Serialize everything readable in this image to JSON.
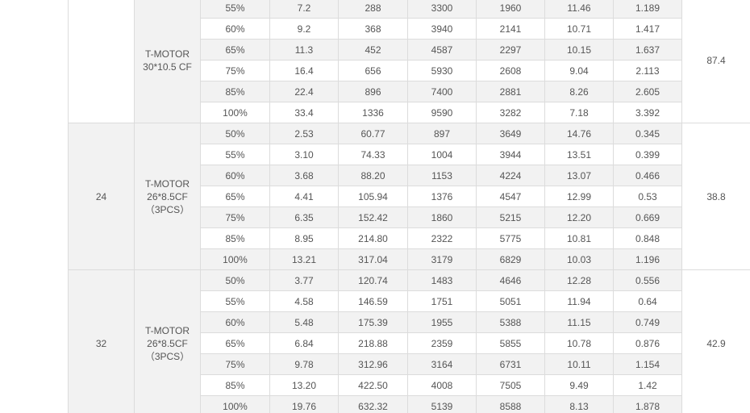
{
  "groups": [
    {
      "propeller": [
        "T-MOTOR",
        "30*10.5 CF"
      ],
      "efficiency": "87.4",
      "rows": [
        [
          "55%",
          "7.2",
          "288",
          "3300",
          "1960",
          "11.46",
          "1.189"
        ],
        [
          "60%",
          "9.2",
          "368",
          "3940",
          "2141",
          "10.71",
          "1.417"
        ],
        [
          "65%",
          "11.3",
          "452",
          "4587",
          "2297",
          "10.15",
          "1.637"
        ],
        [
          "75%",
          "16.4",
          "656",
          "5930",
          "2608",
          "9.04",
          "2.113"
        ],
        [
          "85%",
          "22.4",
          "896",
          "7400",
          "2881",
          "8.26",
          "2.605"
        ],
        [
          "100%",
          "33.4",
          "1336",
          "9590",
          "3282",
          "7.18",
          "3.392"
        ]
      ]
    },
    {
      "voltage": "24",
      "propeller": [
        "T-MOTOR",
        "26*8.5CF",
        "（3PCS）"
      ],
      "efficiency": "38.8",
      "rows": [
        [
          "50%",
          "2.53",
          "60.77",
          "897",
          "3649",
          "14.76",
          "0.345"
        ],
        [
          "55%",
          "3.10",
          "74.33",
          "1004",
          "3944",
          "13.51",
          "0.399"
        ],
        [
          "60%",
          "3.68",
          "88.20",
          "1153",
          "4224",
          "13.07",
          "0.466"
        ],
        [
          "65%",
          "4.41",
          "105.94",
          "1376",
          "4547",
          "12.99",
          "0.53"
        ],
        [
          "75%",
          "6.35",
          "152.42",
          "1860",
          "5215",
          "12.20",
          "0.669"
        ],
        [
          "85%",
          "8.95",
          "214.80",
          "2322",
          "5775",
          "10.81",
          "0.848"
        ],
        [
          "100%",
          "13.21",
          "317.04",
          "3179",
          "6829",
          "10.03",
          "1.196"
        ]
      ]
    },
    {
      "voltage": "32",
      "propeller": [
        "T-MOTOR",
        "26*8.5CF",
        "（3PCS）"
      ],
      "efficiency": "42.9",
      "rows": [
        [
          "50%",
          "3.77",
          "120.74",
          "1483",
          "4646",
          "12.28",
          "0.556"
        ],
        [
          "55%",
          "4.58",
          "146.59",
          "1751",
          "5051",
          "11.94",
          "0.64"
        ],
        [
          "60%",
          "5.48",
          "175.39",
          "1955",
          "5388",
          "11.15",
          "0.749"
        ],
        [
          "65%",
          "6.84",
          "218.88",
          "2359",
          "5855",
          "10.78",
          "0.876"
        ],
        [
          "75%",
          "9.78",
          "312.96",
          "3164",
          "6731",
          "10.11",
          "1.154"
        ],
        [
          "85%",
          "13.20",
          "422.50",
          "4008",
          "7505",
          "9.49",
          "1.42"
        ],
        [
          "100%",
          "19.76",
          "632.32",
          "5139",
          "8588",
          "8.13",
          "1.878"
        ]
      ]
    }
  ]
}
